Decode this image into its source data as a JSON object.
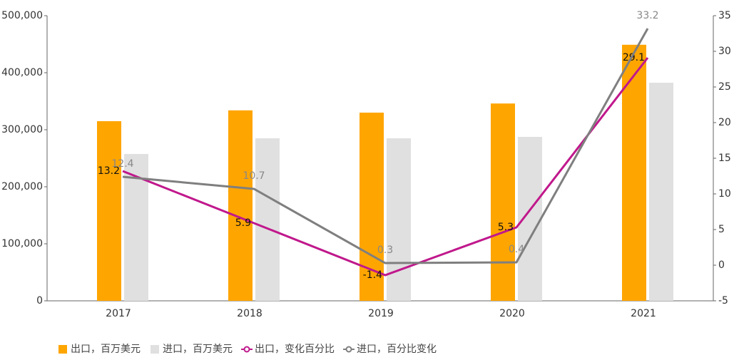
{
  "chart_data": {
    "type": "bar_line",
    "categories": [
      "2017",
      "2018",
      "2019",
      "2020",
      "2021"
    ],
    "series": [
      {
        "name": "出口，百万美元",
        "type": "bar",
        "color": "#FFA500",
        "values": [
          315000,
          334000,
          330000,
          346000,
          449000
        ]
      },
      {
        "name": "进口，百万美元",
        "type": "bar",
        "color": "#E0E0E0",
        "values": [
          257500,
          285000,
          285000,
          287500,
          382500
        ]
      },
      {
        "name": "出口，变化百分比",
        "type": "line",
        "axis": "y2",
        "color": "#C0188C",
        "values": [
          13.2,
          5.9,
          -1.4,
          5.3,
          29.1
        ]
      },
      {
        "name": "进口，百分比变化",
        "type": "line",
        "axis": "y2",
        "color": "#7F7F7F",
        "values": [
          12.4,
          10.7,
          0.3,
          0.4,
          33.2
        ]
      }
    ],
    "ylim": [
      0,
      500000
    ],
    "yticks": [
      0,
      {
        "value": 100000,
        "label": "100,000"
      },
      {
        "value": 200000,
        "label": "200,000"
      },
      {
        "value": 300000,
        "label": "300,000"
      },
      {
        "value": 400000,
        "label": "400,000"
      },
      {
        "value": 500000,
        "label": "500,000"
      }
    ],
    "y2lim": [
      -5,
      35
    ],
    "y2ticks": [
      -5,
      0,
      5,
      10,
      15,
      20,
      25,
      30,
      35
    ]
  }
}
